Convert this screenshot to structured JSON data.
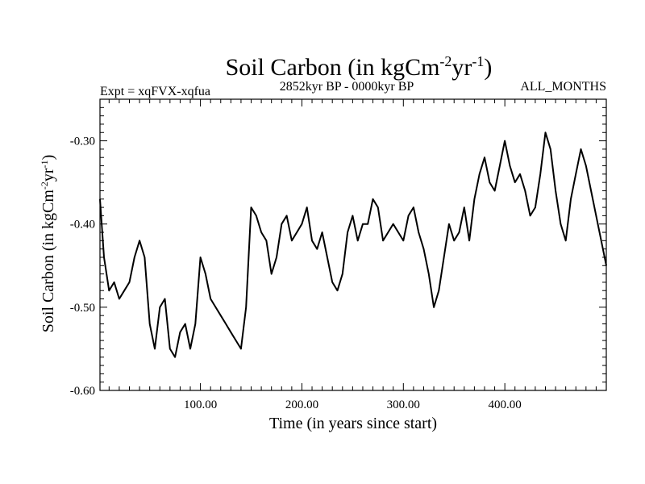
{
  "chart_data": {
    "type": "line",
    "title": "Soil Carbon (in kgCm-2yr-1)",
    "title_parts": {
      "main": "Soil Carbon (in kgCm",
      "exp1": "-2",
      "mid": "yr",
      "exp2": "-1",
      "end": ")"
    },
    "subtitle_left": "Expt = xqFVX-xqfua",
    "subtitle_center": "2852kyr BP - 0000kyr BP",
    "subtitle_right": "ALL_MONTHS",
    "xlabel": "Time (in years since start)",
    "ylabel": "Soil Carbon (in kgCm-2yr-1)",
    "ylabel_parts": {
      "main": "Soil Carbon (in kgCm",
      "exp1": "-2",
      "mid": "yr",
      "exp2": "-1",
      "end": ")"
    },
    "xlim": [
      1,
      500
    ],
    "ylim": [
      -0.6,
      -0.25
    ],
    "x_ticks": [
      100,
      200,
      300,
      400
    ],
    "x_tick_labels": [
      "100.00",
      "200.00",
      "300.00",
      "400.00"
    ],
    "y_ticks": [
      -0.6,
      -0.5,
      -0.4,
      -0.3
    ],
    "y_tick_labels": [
      "-0.60",
      "-0.50",
      "-0.40",
      "-0.30"
    ],
    "series": [
      {
        "name": "Soil Carbon",
        "color": "#000000",
        "x": [
          1,
          5,
          10,
          15,
          20,
          25,
          30,
          35,
          40,
          45,
          50,
          55,
          60,
          65,
          70,
          75,
          80,
          85,
          90,
          95,
          100,
          105,
          110,
          115,
          120,
          125,
          130,
          135,
          140,
          145,
          150,
          155,
          160,
          165,
          170,
          175,
          180,
          185,
          190,
          195,
          200,
          205,
          210,
          215,
          220,
          225,
          230,
          235,
          240,
          245,
          250,
          255,
          260,
          265,
          270,
          275,
          280,
          285,
          290,
          295,
          300,
          305,
          310,
          315,
          320,
          325,
          330,
          335,
          340,
          345,
          350,
          355,
          360,
          365,
          370,
          375,
          380,
          385,
          390,
          395,
          400,
          405,
          410,
          415,
          420,
          425,
          430,
          435,
          440,
          445,
          450,
          455,
          460,
          465,
          470,
          475,
          480,
          485,
          490,
          495,
          500
        ],
        "values": [
          -0.37,
          -0.44,
          -0.48,
          -0.47,
          -0.49,
          -0.48,
          -0.47,
          -0.44,
          -0.42,
          -0.44,
          -0.52,
          -0.55,
          -0.5,
          -0.49,
          -0.55,
          -0.56,
          -0.53,
          -0.52,
          -0.55,
          -0.52,
          -0.44,
          -0.46,
          -0.49,
          -0.5,
          -0.51,
          -0.52,
          -0.53,
          -0.54,
          -0.55,
          -0.5,
          -0.38,
          -0.39,
          -0.41,
          -0.42,
          -0.46,
          -0.44,
          -0.4,
          -0.39,
          -0.42,
          -0.41,
          -0.4,
          -0.38,
          -0.42,
          -0.43,
          -0.41,
          -0.44,
          -0.47,
          -0.48,
          -0.46,
          -0.41,
          -0.39,
          -0.42,
          -0.4,
          -0.4,
          -0.37,
          -0.38,
          -0.42,
          -0.41,
          -0.4,
          -0.41,
          -0.42,
          -0.39,
          -0.38,
          -0.41,
          -0.43,
          -0.46,
          -0.5,
          -0.48,
          -0.44,
          -0.4,
          -0.42,
          -0.41,
          -0.38,
          -0.42,
          -0.37,
          -0.34,
          -0.32,
          -0.35,
          -0.36,
          -0.33,
          -0.3,
          -0.33,
          -0.35,
          -0.34,
          -0.36,
          -0.39,
          -0.38,
          -0.34,
          -0.29,
          -0.31,
          -0.36,
          -0.4,
          -0.42,
          -0.37,
          -0.34,
          -0.31,
          -0.33,
          -0.36,
          -0.39,
          -0.42,
          -0.45
        ]
      }
    ],
    "grid": false,
    "legend": "none"
  }
}
